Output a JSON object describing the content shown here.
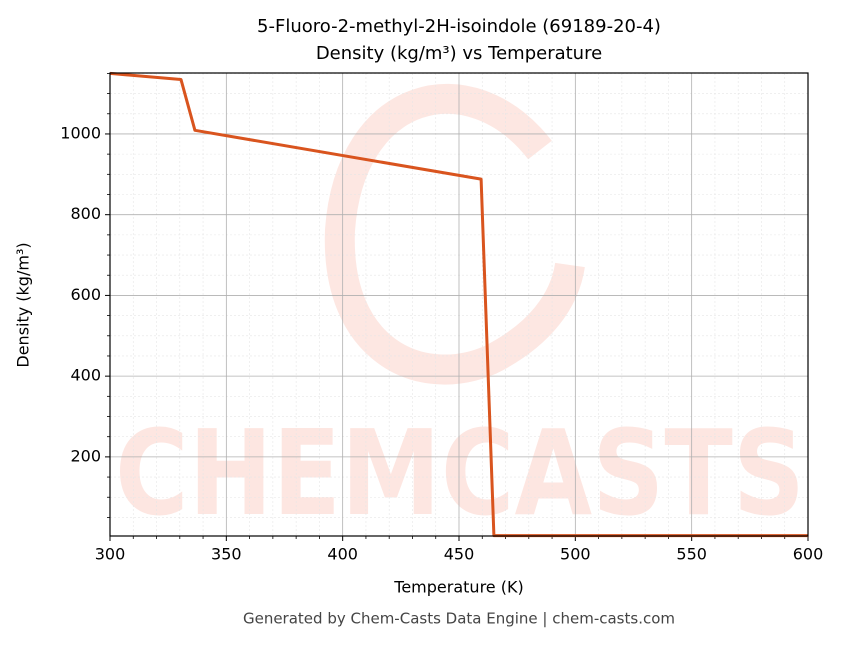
{
  "chart_data": {
    "type": "line",
    "title": "5-Fluoro-2-methyl-2H-isoindole (69189-20-4)",
    "subtitle": "Density (kg/m³) vs Temperature",
    "x_label": "Temperature (K)",
    "y_label": "Density (kg/m³)",
    "footer": "Generated by Chem-Casts Data Engine | chem-casts.com",
    "watermark": "CHEMCASTS",
    "x": [
      300,
      330.5,
      336.5,
      459.5,
      465,
      600
    ],
    "series": [
      {
        "name": "Density",
        "color": "#d9541e",
        "values": [
          1150,
          1135,
          1009,
          888,
          5,
          5
        ]
      }
    ],
    "xlim": [
      300,
      600
    ],
    "xticks": [
      300,
      350,
      400,
      450,
      500,
      550,
      600
    ],
    "ylim": [
      4,
      1151
    ],
    "yticks": [
      200,
      400,
      600,
      800,
      1000
    ],
    "grid": true,
    "minor_grid": true
  }
}
